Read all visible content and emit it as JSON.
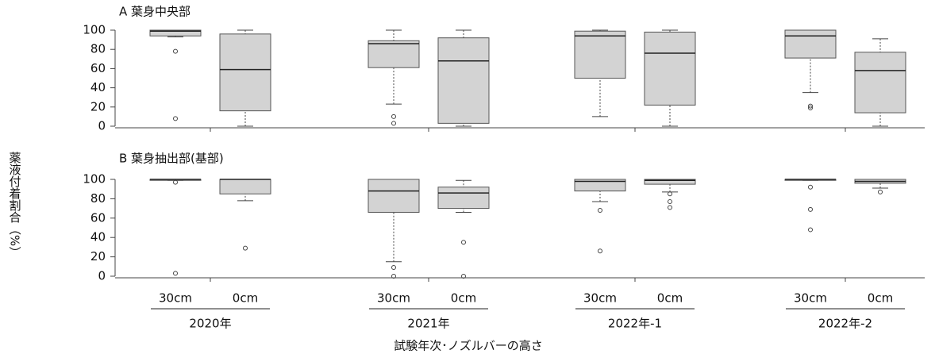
{
  "y_label": "薬液付着割合（%）",
  "x_label": "試験年次･ノズルバーの高さ",
  "groups": [
    "2020年",
    "2021年",
    "2022年-1",
    "2022年-2"
  ],
  "chart_data": [
    {
      "type": "box",
      "title": "A 葉身中央部",
      "categories": [
        null,
        null,
        null,
        null,
        null,
        null,
        null,
        null
      ],
      "color": "#d3d3d3",
      "ylim": [
        0,
        100
      ],
      "yticks": [
        0,
        20,
        40,
        60,
        80,
        100
      ],
      "boxes": [
        {
          "min": 93,
          "q1": 94,
          "median": 99,
          "q3": 100,
          "max": 100,
          "outliers": [
            78,
            8
          ]
        },
        {
          "min": 0,
          "q1": 16,
          "median": 59,
          "q3": 96,
          "max": 100,
          "outliers": []
        },
        {
          "min": 23,
          "q1": 61,
          "median": 86,
          "q3": 89,
          "max": 100,
          "outliers": [
            10,
            3
          ]
        },
        {
          "min": 0,
          "q1": 3,
          "median": 68,
          "q3": 92,
          "max": 100,
          "outliers": []
        },
        {
          "min": 10,
          "q1": 50,
          "median": 94,
          "q3": 99,
          "max": 100,
          "outliers": []
        },
        {
          "min": 0,
          "q1": 22,
          "median": 76,
          "q3": 98,
          "max": 100,
          "outliers": []
        },
        {
          "min": 35,
          "q1": 71,
          "median": 94,
          "q3": 100,
          "max": 100,
          "outliers": [
            21,
            19
          ]
        },
        {
          "min": 0,
          "q1": 14,
          "median": 58,
          "q3": 77,
          "max": 91,
          "outliers": []
        }
      ]
    },
    {
      "type": "box",
      "title": "B 葉身抽出部(基部)",
      "categories": [
        "30cm",
        "0cm",
        "30cm",
        "0cm",
        "30cm",
        "0cm",
        "30cm",
        "0cm"
      ],
      "color": "#d3d3d3",
      "ylim": [
        0,
        100
      ],
      "yticks": [
        0,
        20,
        40,
        60,
        80,
        100
      ],
      "boxes": [
        {
          "min": 99,
          "q1": 99,
          "median": 100,
          "q3": 100,
          "max": 100,
          "outliers": [
            97,
            3
          ]
        },
        {
          "min": 78,
          "q1": 85,
          "median": 100,
          "q3": 100,
          "max": 100,
          "outliers": [
            29
          ]
        },
        {
          "min": 15,
          "q1": 66,
          "median": 88,
          "q3": 100,
          "max": 100,
          "outliers": [
            9,
            0
          ]
        },
        {
          "min": 66,
          "q1": 70,
          "median": 86,
          "q3": 92,
          "max": 99,
          "outliers": [
            35,
            0
          ]
        },
        {
          "min": 77,
          "q1": 88,
          "median": 98,
          "q3": 100,
          "max": 100,
          "outliers": [
            68,
            26
          ]
        },
        {
          "min": 87,
          "q1": 95,
          "median": 99,
          "q3": 100,
          "max": 100,
          "outliers": [
            85,
            77,
            71
          ]
        },
        {
          "min": 99,
          "q1": 99,
          "median": 100,
          "q3": 100,
          "max": 100,
          "outliers": [
            92,
            69,
            48
          ]
        },
        {
          "min": 91,
          "q1": 96,
          "median": 98,
          "q3": 100,
          "max": 100,
          "outliers": [
            87
          ]
        }
      ]
    }
  ]
}
